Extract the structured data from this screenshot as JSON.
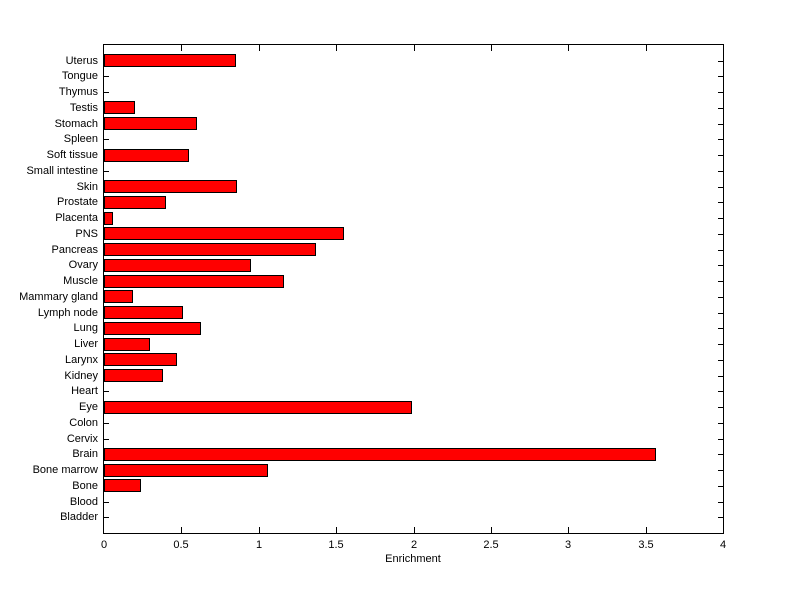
{
  "chart_data": {
    "type": "bar",
    "orientation": "horizontal",
    "title": "",
    "xlabel": "Enrichment",
    "ylabel": "",
    "xlim": [
      0,
      4
    ],
    "xticks": [
      0,
      0.5,
      1,
      1.5,
      2,
      2.5,
      3,
      3.5,
      4
    ],
    "xtick_labels": [
      "0",
      "0.5",
      "1",
      "1.5",
      "2",
      "2.5",
      "3",
      "3.5",
      "4"
    ],
    "grid": false,
    "legend": null,
    "categories": [
      "Uterus",
      "Tongue",
      "Thymus",
      "Testis",
      "Stomach",
      "Spleen",
      "Soft tissue",
      "Small intestine",
      "Skin",
      "Prostate",
      "Placenta",
      "PNS",
      "Pancreas",
      "Ovary",
      "Muscle",
      "Mammary gland",
      "Lymph node",
      "Lung",
      "Liver",
      "Larynx",
      "Kidney",
      "Heart",
      "Eye",
      "Colon",
      "Cervix",
      "Brain",
      "Bone marrow",
      "Bone",
      "Blood",
      "Bladder"
    ],
    "values": [
      0.85,
      0,
      0,
      0.2,
      0.6,
      0,
      0.55,
      0,
      0.86,
      0.4,
      0.06,
      1.55,
      1.37,
      0.95,
      1.16,
      0.19,
      0.51,
      0.63,
      0.3,
      0.47,
      0.38,
      0,
      1.99,
      0,
      0,
      3.57,
      1.06,
      0.24,
      0,
      0
    ],
    "bar_color": "#ff0000",
    "bar_border_color": "#000000",
    "axis_color": "#000000",
    "background_color": "#ffffff"
  }
}
